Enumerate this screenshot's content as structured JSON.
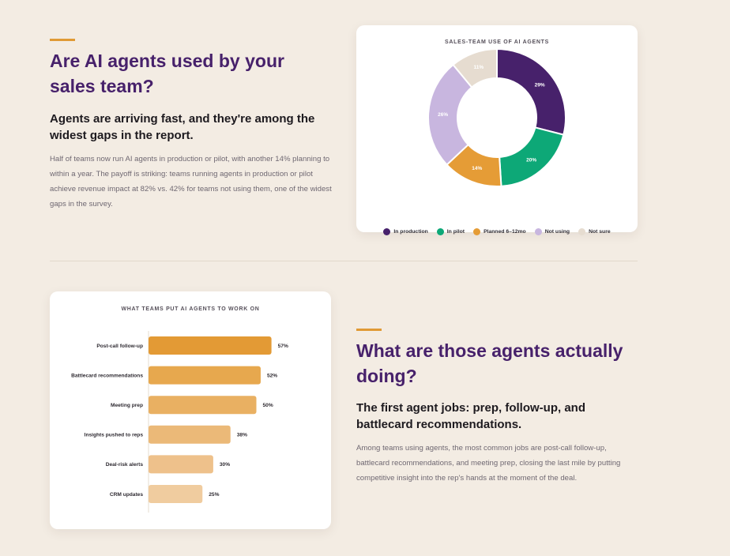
{
  "section1": {
    "heading": "Are AI agents used by your sales team?",
    "subheading": "Agents are arriving fast, and they're among the widest gaps in the report.",
    "body": "Half of teams now run AI agents in production or pilot, with another 14% planning to within a year. The payoff is striking: teams running agents in production or pilot achieve revenue impact at 82% vs. 42% for teams not using them, one of the widest gaps in the survey."
  },
  "section2": {
    "heading": "What are those agents actually doing?",
    "subheading": "The first agent jobs: prep, follow-up, and battlecard recommendations.",
    "body": "Among teams using agents, the most common jobs are post-call follow-up, battlecard recommendations, and meeting prep, closing the last mile by putting competitive insight into the rep's hands at the moment of the deal."
  },
  "chart_data": [
    {
      "type": "pie",
      "variant": "donut",
      "title": "SALES-TEAM USE OF AI AGENTS",
      "categories": [
        "In production",
        "In pilot",
        "Planned 6–12mo",
        "Not using",
        "Not sure"
      ],
      "values": [
        29,
        20,
        14,
        26,
        11
      ],
      "labels": [
        "29%",
        "20%",
        "14%",
        "26%",
        "11%"
      ],
      "colors": [
        "#47216b",
        "#0da877",
        "#e59c36",
        "#c8b6df",
        "#e6dcd0"
      ],
      "label_colors": [
        "#ffffff",
        "#ffffff",
        "#ffffff",
        "#ffffff",
        "#ffffff"
      ],
      "legend": "bottom"
    },
    {
      "type": "bar",
      "orientation": "horizontal",
      "title": "WHAT TEAMS PUT AI AGENTS TO WORK ON",
      "categories": [
        "Post-call follow-up",
        "Battlecard recommendations",
        "Meeting prep",
        "Insights pushed to reps",
        "Deal-risk alerts",
        "CRM updates"
      ],
      "values": [
        57,
        52,
        50,
        38,
        30,
        25
      ],
      "labels": [
        "57%",
        "52%",
        "50%",
        "38%",
        "30%",
        "25%"
      ],
      "colors": [
        "#e39a35",
        "#e7a84e",
        "#e9b062",
        "#ebb978",
        "#eec18b",
        "#f0cc9f"
      ],
      "xlim": [
        0,
        100
      ]
    }
  ]
}
